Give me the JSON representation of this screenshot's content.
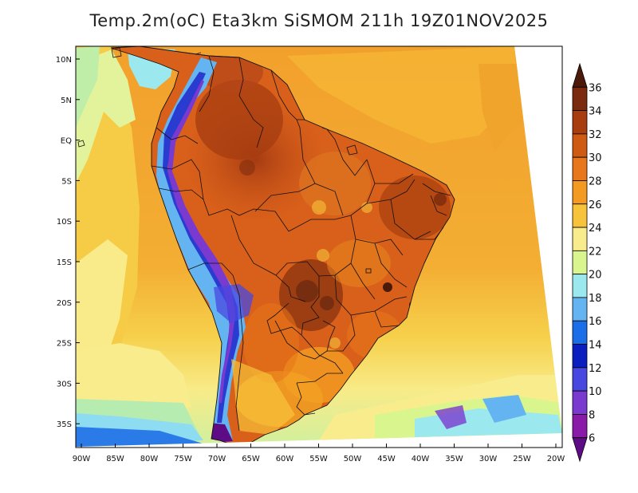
{
  "title": "Temp.2m(oC) Eta3km SiSMOM 211h 19Z01NOV2025",
  "map": {
    "lat_labels": [
      "10N",
      "5N",
      "EQ",
      "5S",
      "10S",
      "15S",
      "20S",
      "25S",
      "30S",
      "35S"
    ],
    "lon_labels": [
      "90W",
      "85W",
      "80W",
      "75W",
      "70W",
      "65W",
      "60W",
      "55W",
      "50W",
      "45W",
      "40W",
      "35W",
      "30W",
      "25W",
      "20W"
    ]
  },
  "colorbar": {
    "labels": [
      "36",
      "34",
      "32",
      "30",
      "28",
      "26",
      "24",
      "22",
      "20",
      "18",
      "16",
      "14",
      "12",
      "10",
      "8",
      "6"
    ],
    "colors": [
      "#4b1a0b",
      "#7a2a0e",
      "#a83e10",
      "#cf5a12",
      "#e8761a",
      "#f29a22",
      "#f7c33b",
      "#f9ec8c",
      "#d9f58e",
      "#9be8ef",
      "#63b4f0",
      "#1a6ee8",
      "#0b1fbf",
      "#4848e0",
      "#7a3ad0",
      "#8a1aa8",
      "#5e0b86"
    ]
  }
}
